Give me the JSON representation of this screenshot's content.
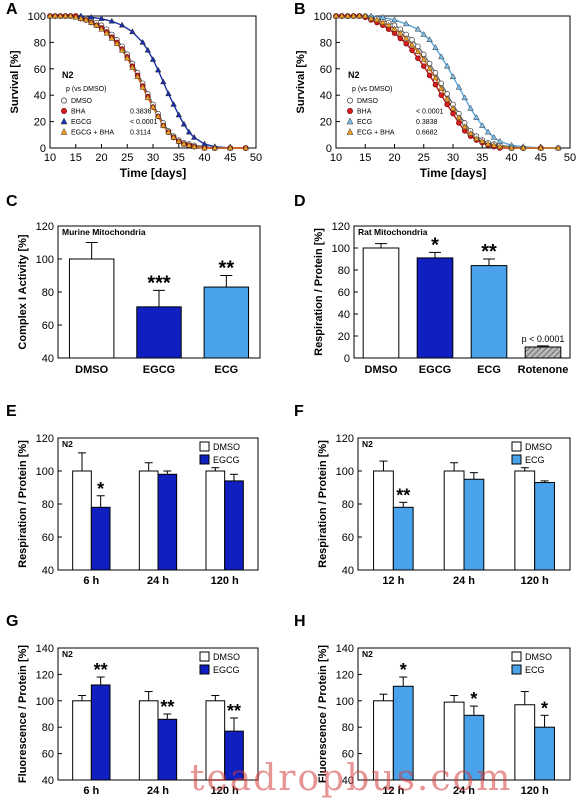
{
  "chart_data": [
    {
      "panel": "A",
      "type": "line",
      "strain": "N2",
      "xlabel": "Time [days]",
      "ylabel": "Survival [%]",
      "xlim": [
        10,
        50
      ],
      "ylim": [
        0,
        100
      ],
      "xticks": [
        "10",
        "15",
        "20",
        "25",
        "30",
        "35",
        "40",
        "45",
        "50"
      ],
      "yticks": [
        "0",
        "20",
        "40",
        "60",
        "80",
        "100"
      ],
      "legend_header": "p (vs DMSO)",
      "series": [
        {
          "name": "DMSO",
          "marker": "circle",
          "fill": "#ffffff",
          "line": "#707070",
          "p": "",
          "x": [
            10,
            11,
            12,
            13,
            14,
            15,
            16,
            17,
            18,
            19,
            20,
            21,
            22,
            23,
            24,
            25,
            26,
            27,
            28,
            29,
            30,
            31,
            32,
            33,
            34,
            35,
            36,
            37,
            38,
            40,
            42,
            45,
            48
          ],
          "y": [
            100,
            100,
            100,
            100,
            100,
            100,
            99,
            98,
            97,
            95,
            93,
            90,
            86,
            82,
            77,
            71,
            64,
            57,
            49,
            41,
            33,
            26,
            19,
            13,
            9,
            6,
            4,
            3,
            2,
            1,
            0,
            0,
            0
          ]
        },
        {
          "name": "BHA",
          "marker": "circle",
          "fill": "#d42020",
          "line": "#c01818",
          "p": "0.3836",
          "x": [
            10,
            11,
            12,
            13,
            14,
            15,
            16,
            17,
            18,
            19,
            20,
            21,
            22,
            23,
            24,
            25,
            26,
            27,
            28,
            29,
            30,
            31,
            32,
            33,
            34,
            35,
            36,
            37,
            38,
            40,
            42,
            45,
            48
          ],
          "y": [
            100,
            100,
            100,
            100,
            100,
            100,
            98,
            97,
            95,
            93,
            91,
            88,
            84,
            80,
            75,
            69,
            62,
            55,
            47,
            39,
            31,
            24,
            17,
            12,
            8,
            5,
            3,
            2,
            1,
            0,
            0,
            0,
            0
          ]
        },
        {
          "name": "EGCG",
          "marker": "triangle",
          "fill": "#1a2faa",
          "line": "#1a2faa",
          "p": "< 0.0001",
          "x": [
            10,
            12,
            14,
            16,
            18,
            20,
            22,
            24,
            26,
            28,
            29,
            30,
            31,
            32,
            33,
            34,
            35,
            36,
            37,
            38,
            40,
            42,
            45
          ],
          "y": [
            100,
            100,
            100,
            100,
            99,
            98,
            96,
            93,
            88,
            80,
            74,
            67,
            59,
            50,
            41,
            33,
            25,
            18,
            12,
            8,
            3,
            1,
            0
          ]
        },
        {
          "name": "EGCG + BHA",
          "marker": "triangle",
          "fill": "#f0a020",
          "line": "#d66a10",
          "p": "0.3114",
          "x": [
            10,
            11,
            12,
            13,
            14,
            15,
            16,
            17,
            18,
            19,
            20,
            21,
            22,
            23,
            24,
            25,
            26,
            27,
            28,
            29,
            30,
            31,
            32,
            33,
            34,
            35,
            36,
            37,
            38,
            40,
            42,
            45,
            48
          ],
          "y": [
            100,
            100,
            100,
            100,
            100,
            99,
            98,
            97,
            95,
            93,
            90,
            87,
            83,
            79,
            74,
            68,
            61,
            54,
            46,
            38,
            31,
            24,
            17,
            12,
            8,
            5,
            3,
            2,
            1,
            0,
            0,
            0,
            0
          ]
        }
      ]
    },
    {
      "panel": "B",
      "type": "line",
      "strain": "N2",
      "xlabel": "Time [days]",
      "ylabel": "Survival [%]",
      "xlim": [
        10,
        50
      ],
      "ylim": [
        0,
        100
      ],
      "xticks": [
        "10",
        "15",
        "20",
        "25",
        "30",
        "35",
        "40",
        "45",
        "50"
      ],
      "yticks": [
        "0",
        "20",
        "40",
        "60",
        "80",
        "100"
      ],
      "legend_header": "p (vs DMSO)",
      "series": [
        {
          "name": "DMSO",
          "marker": "circle",
          "fill": "#ffffff",
          "line": "#707070",
          "p": "",
          "x": [
            10,
            11,
            12,
            13,
            14,
            15,
            16,
            17,
            18,
            19,
            20,
            21,
            22,
            23,
            24,
            25,
            26,
            27,
            28,
            29,
            30,
            31,
            32,
            33,
            34,
            35,
            36,
            37,
            38,
            40,
            42,
            45,
            48
          ],
          "y": [
            100,
            100,
            100,
            100,
            100,
            100,
            99,
            98,
            97,
            95,
            93,
            90,
            86,
            82,
            77,
            71,
            64,
            57,
            49,
            41,
            33,
            26,
            19,
            13,
            9,
            6,
            4,
            3,
            2,
            1,
            0,
            0,
            0
          ]
        },
        {
          "name": "BHA",
          "marker": "circle",
          "fill": "#d42020",
          "line": "#c01818",
          "p": "< 0.0001",
          "x": [
            10,
            11,
            12,
            13,
            14,
            15,
            16,
            17,
            18,
            19,
            20,
            21,
            22,
            23,
            24,
            25,
            26,
            27,
            28,
            29,
            30,
            31,
            32,
            33,
            34,
            35,
            36,
            37,
            38,
            40,
            42,
            45
          ],
          "y": [
            100,
            100,
            100,
            100,
            100,
            99,
            97,
            95,
            93,
            90,
            87,
            83,
            79,
            74,
            68,
            62,
            55,
            48,
            40,
            33,
            26,
            19,
            13,
            9,
            6,
            4,
            2,
            1,
            0,
            0,
            0,
            0
          ]
        },
        {
          "name": "ECG",
          "marker": "triangle",
          "fill": "#7ec0ec",
          "line": "#5aa6dc",
          "p": "0.3838",
          "x": [
            10,
            12,
            14,
            16,
            18,
            20,
            22,
            24,
            25,
            26,
            27,
            28,
            29,
            30,
            31,
            32,
            33,
            34,
            35,
            36,
            37,
            38,
            40,
            42,
            45,
            48
          ],
          "y": [
            100,
            100,
            100,
            100,
            99,
            97,
            94,
            90,
            86,
            82,
            76,
            69,
            62,
            54,
            46,
            38,
            30,
            23,
            17,
            12,
            8,
            5,
            2,
            1,
            0,
            0
          ]
        },
        {
          "name": "ECG + BHA",
          "marker": "triangle",
          "fill": "#f0a020",
          "line": "#d66a10",
          "p": "0.6682",
          "x": [
            10,
            11,
            12,
            13,
            14,
            15,
            16,
            17,
            18,
            19,
            20,
            21,
            22,
            23,
            24,
            25,
            26,
            27,
            28,
            29,
            30,
            31,
            32,
            33,
            34,
            35,
            36,
            37,
            38,
            40,
            42,
            45,
            48
          ],
          "y": [
            100,
            100,
            100,
            100,
            100,
            100,
            98,
            97,
            95,
            93,
            90,
            87,
            83,
            78,
            73,
            67,
            60,
            53,
            45,
            37,
            30,
            23,
            16,
            11,
            7,
            5,
            3,
            2,
            1,
            0,
            0,
            0,
            0
          ]
        }
      ]
    },
    {
      "panel": "C",
      "type": "bar",
      "inset_title": "Murine Mitochondria",
      "ylabel": "Complex I Activity [%]",
      "ylim": [
        40,
        120
      ],
      "yticks": [
        "40",
        "60",
        "80",
        "100",
        "120"
      ],
      "categories": [
        "DMSO",
        "EGCG",
        "ECG"
      ],
      "values": [
        100,
        71,
        83
      ],
      "errors": [
        10,
        10,
        7
      ],
      "colors": [
        "#ffffff",
        "#1020c0",
        "#4aa3ea"
      ],
      "significance": [
        "",
        "***",
        "**"
      ]
    },
    {
      "panel": "D",
      "type": "bar",
      "inset_title": "Rat Mitochondria",
      "ylabel": "Respiration / Protein [%]",
      "ylim": [
        0,
        120
      ],
      "yticks": [
        "0",
        "20",
        "40",
        "60",
        "80",
        "100",
        "120"
      ],
      "categories": [
        "DMSO",
        "EGCG",
        "ECG",
        "Rotenone"
      ],
      "values": [
        100,
        91,
        84,
        10
      ],
      "errors": [
        4,
        5,
        6,
        1
      ],
      "colors": [
        "#ffffff",
        "#1020c0",
        "#4aa3ea",
        "hatch"
      ],
      "significance": [
        "",
        "*",
        "**",
        "p < 0.0001"
      ]
    },
    {
      "panel": "E",
      "type": "bar",
      "strain": "N2",
      "ylabel": "Respiration / Protein [%]",
      "ylim": [
        40,
        120
      ],
      "yticks": [
        "40",
        "60",
        "80",
        "100",
        "120"
      ],
      "categories": [
        "6 h",
        "24 h",
        "120 h"
      ],
      "series": [
        {
          "name": "DMSO",
          "color": "#ffffff",
          "values": [
            100,
            100,
            100
          ],
          "errors": [
            11,
            5,
            2
          ],
          "significance": [
            "",
            "",
            ""
          ]
        },
        {
          "name": "EGCG",
          "color": "#1020c0",
          "values": [
            78,
            98,
            94
          ],
          "errors": [
            7,
            2,
            4
          ],
          "significance": [
            "*",
            "",
            ""
          ]
        }
      ]
    },
    {
      "panel": "F",
      "type": "bar",
      "strain": "N2",
      "ylabel": "Respiration / Protein [%]",
      "ylim": [
        40,
        120
      ],
      "yticks": [
        "40",
        "60",
        "80",
        "100",
        "120"
      ],
      "categories": [
        "12 h",
        "24 h",
        "120 h"
      ],
      "series": [
        {
          "name": "DMSO",
          "color": "#ffffff",
          "values": [
            100,
            100,
            100
          ],
          "errors": [
            6,
            5,
            2
          ],
          "significance": [
            "",
            "",
            ""
          ]
        },
        {
          "name": "ECG",
          "color": "#4aa3ea",
          "values": [
            78,
            95,
            93
          ],
          "errors": [
            3,
            4,
            1
          ],
          "significance": [
            "**",
            "",
            ""
          ]
        }
      ]
    },
    {
      "panel": "G",
      "type": "bar",
      "strain": "N2",
      "ylabel": "Fluorescence / Protein [%]",
      "ylim": [
        40,
        140
      ],
      "yticks": [
        "40",
        "60",
        "80",
        "100",
        "120",
        "140"
      ],
      "categories": [
        "6 h",
        "24 h",
        "120 h"
      ],
      "series": [
        {
          "name": "DMSO",
          "color": "#ffffff",
          "values": [
            100,
            100,
            100
          ],
          "errors": [
            4,
            7,
            4
          ],
          "significance": [
            "",
            "",
            ""
          ]
        },
        {
          "name": "EGCG",
          "color": "#1020c0",
          "values": [
            112,
            86,
            77
          ],
          "errors": [
            6,
            4,
            10
          ],
          "significance": [
            "**",
            "**",
            "**"
          ]
        }
      ]
    },
    {
      "panel": "H",
      "type": "bar",
      "strain": "N2",
      "ylabel": "Fluorescence / Protein [%]",
      "ylim": [
        40,
        140
      ],
      "yticks": [
        "40",
        "60",
        "80",
        "100",
        "120",
        "140"
      ],
      "categories": [
        "12 h",
        "24 h",
        "120 h"
      ],
      "series": [
        {
          "name": "DMSO",
          "color": "#ffffff",
          "values": [
            100,
            99,
            97
          ],
          "errors": [
            5,
            5,
            10
          ],
          "significance": [
            "",
            "",
            ""
          ]
        },
        {
          "name": "ECG",
          "color": "#4aa3ea",
          "values": [
            111,
            89,
            80
          ],
          "errors": [
            7,
            7,
            9
          ],
          "significance": [
            "*",
            "*",
            "*"
          ]
        }
      ]
    }
  ],
  "watermark": "teadropbus.com"
}
